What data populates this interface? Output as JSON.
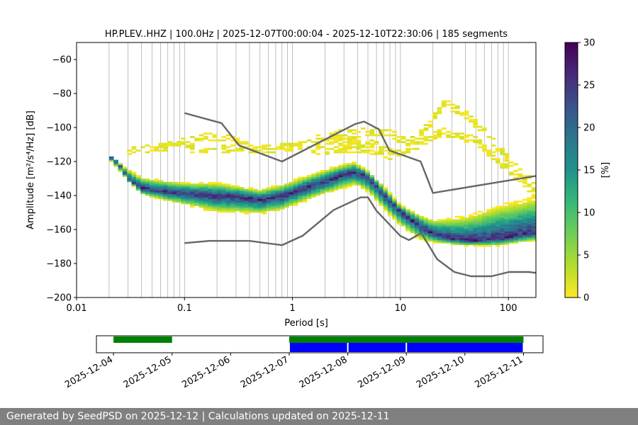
{
  "chart_data": [
    {
      "type": "heatmap",
      "title": "HP.PLEV..HHZ | 100.0Hz | 2025-12-07T00:00:04 - 2025-12-10T22:30:06 | 185 segments",
      "xlabel": "Period [s]",
      "ylabel": "Amplitude [m²/s⁴/Hz] [dB]",
      "x_scale": "log",
      "xlim": [
        0.01,
        180
      ],
      "ylim": [
        -200,
        -50
      ],
      "x_ticks": [
        {
          "value": 0.01,
          "label": "0.01"
        },
        {
          "value": 0.1,
          "label": "0.1"
        },
        {
          "value": 1,
          "label": "1"
        },
        {
          "value": 10,
          "label": "10"
        },
        {
          "value": 100,
          "label": "100"
        }
      ],
      "y_ticks": [
        {
          "value": -60,
          "label": "−60"
        },
        {
          "value": -80,
          "label": "−80"
        },
        {
          "value": -100,
          "label": "−100"
        },
        {
          "value": -120,
          "label": "−120"
        },
        {
          "value": -140,
          "label": "−140"
        },
        {
          "value": -160,
          "label": "−160"
        },
        {
          "value": -180,
          "label": "−180"
        },
        {
          "value": -200,
          "label": "−200"
        }
      ],
      "grid": "x-minor",
      "colormap": "viridis_r",
      "colorbar": {
        "label": "[%]",
        "range": [
          0,
          30
        ],
        "ticks": [
          {
            "value": 0,
            "label": "0"
          },
          {
            "value": 5,
            "label": "5"
          },
          {
            "value": 10,
            "label": "10"
          },
          {
            "value": 15,
            "label": "15"
          },
          {
            "value": 20,
            "label": "20"
          },
          {
            "value": 25,
            "label": "25"
          },
          {
            "value": 30,
            "label": "30"
          }
        ]
      },
      "mode_curve": {
        "x": [
          0.02,
          0.025,
          0.03,
          0.04,
          0.06,
          0.1,
          0.15,
          0.2,
          0.3,
          0.5,
          0.8,
          1.2,
          2,
          3,
          3.7,
          4.5,
          5.5,
          7,
          10,
          15,
          20,
          30,
          50,
          100,
          180
        ],
        "y": [
          -117,
          -122,
          -131,
          -136,
          -138,
          -139,
          -140,
          -141,
          -141,
          -143,
          -141,
          -137,
          -132,
          -128,
          -127,
          -128,
          -132,
          -140,
          -150,
          -158,
          -163,
          -166,
          -167,
          -165,
          -162
        ]
      },
      "band_upper": {
        "x": [
          0.02,
          0.04,
          0.1,
          0.2,
          0.5,
          0.8,
          1.5,
          3,
          3.8,
          5,
          7,
          10,
          15,
          20,
          40,
          80,
          180
        ],
        "y": [
          -118,
          -130,
          -133,
          -133,
          -137,
          -134,
          -128,
          -122,
          -121,
          -126,
          -135,
          -146,
          -152,
          -155,
          -153,
          -147,
          -142
        ]
      },
      "band_lower": {
        "x": [
          0.02,
          0.04,
          0.1,
          0.2,
          0.5,
          0.8,
          1.5,
          3,
          3.8,
          5,
          7,
          10,
          15,
          20,
          40,
          80,
          180
        ],
        "y": [
          -119,
          -140,
          -146,
          -150,
          -151,
          -149,
          -142,
          -136,
          -134,
          -138,
          -148,
          -158,
          -166,
          -168,
          -170,
          -170,
          -167
        ]
      },
      "scatter_bands": [
        {
          "x": [
            0.03,
            0.08,
            0.15,
            0.25,
            0.4
          ],
          "y": [
            -114,
            -111,
            -106,
            -107,
            -112
          ]
        },
        {
          "x": [
            0.1,
            0.3,
            0.6,
            1.0,
            2.0,
            4.0,
            6.0,
            8.0
          ],
          "y": [
            -113,
            -113,
            -113,
            -112,
            -109,
            -108,
            -110,
            -115
          ]
        },
        {
          "x": [
            1.5,
            3.0,
            5.0,
            8.0,
            12.0,
            18.0,
            25.0,
            40.0,
            70.0,
            120.0,
            180.0
          ],
          "y": [
            -108,
            -104,
            -103,
            -104,
            -110,
            -100,
            -86,
            -92,
            -108,
            -125,
            -135
          ]
        },
        {
          "x": [
            1.5,
            3.0,
            5.0,
            8.0,
            15.0,
            25.0,
            50.0,
            100.0,
            180.0
          ],
          "y": [
            -115,
            -113,
            -113,
            -117,
            -110,
            -103,
            -108,
            -125,
            -140
          ]
        }
      ],
      "noise_models": [
        {
          "x": [
            0.1,
            0.22,
            0.32,
            0.8,
            3.8,
            4.6,
            6.3,
            7.9,
            15.4,
            20,
            180
          ],
          "y": [
            -91.5,
            -97.4,
            -110.5,
            -120,
            -98,
            -96.5,
            -101,
            -113.5,
            -120,
            -138.5,
            -128.5
          ]
        },
        {
          "x": [
            0.1,
            0.17,
            0.4,
            0.8,
            1.24,
            2.4,
            4.3,
            5,
            6,
            10,
            12,
            15.6,
            21.9,
            31.6,
            45,
            70,
            101,
            154,
            180
          ],
          "y": [
            -168,
            -166.7,
            -166.7,
            -169.2,
            -163.7,
            -148.6,
            -141.1,
            -141.1,
            -149,
            -163.8,
            -166.2,
            -162.1,
            -177.5,
            -185,
            -187.5,
            -187.5,
            -185,
            -185,
            -185.5
          ]
        }
      ]
    },
    {
      "type": "timeline",
      "x_ticks": [
        "2025-12-04",
        "2025-12-05",
        "2025-12-06",
        "2025-12-07",
        "2025-12-08",
        "2025-12-09",
        "2025-12-10",
        "2025-12-11"
      ],
      "xlim": [
        "2025-12-03T17:00",
        "2025-12-11T08:00"
      ],
      "data_available": [
        {
          "start": "2025-12-04T00:00",
          "end": "2025-12-05T00:00"
        },
        {
          "start": "2025-12-07T00:00",
          "end": "2025-12-11T00:00"
        }
      ],
      "psd_segments": [
        {
          "start": "2025-12-07T00:00",
          "end": "2025-12-08T00:00"
        },
        {
          "start": "2025-12-08T00:00",
          "end": "2025-12-09T00:00"
        },
        {
          "start": "2025-12-09T00:00",
          "end": "2025-12-11T00:00"
        }
      ],
      "colors": {
        "data": "#008000",
        "psd": "#0000ff"
      }
    }
  ],
  "colors": {
    "noise_model": "#666666"
  },
  "footer": {
    "text": "Generated by SeedPSD on 2025-12-12 | Calculations updated on 2025-12-11"
  }
}
